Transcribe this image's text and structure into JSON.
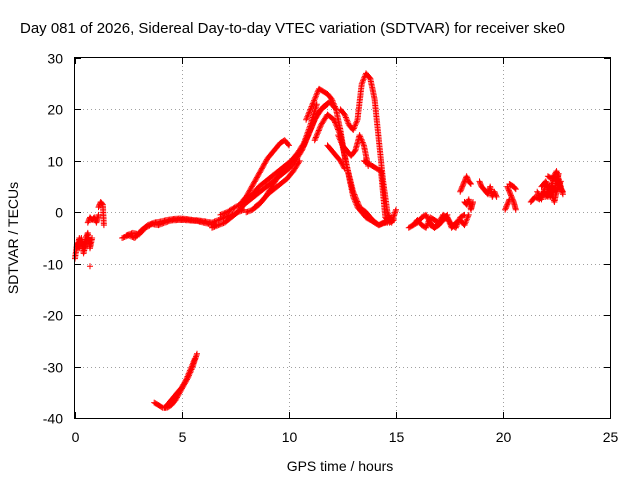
{
  "chart_data": {
    "type": "scatter",
    "title": "Day 081 of 2026, Sidereal Day-to-day VTEC variation (SDTVAR) for receiver ske0",
    "xlabel": "GPS time / hours",
    "ylabel": "SDTVAR / TECUs",
    "xlim": [
      0,
      25
    ],
    "ylim": [
      -40,
      30
    ],
    "x_ticks": [
      0,
      5,
      10,
      15,
      20,
      25
    ],
    "y_ticks": [
      -40,
      -30,
      -20,
      -10,
      0,
      10,
      20,
      30
    ],
    "x_tick_labels": [
      "0",
      "5",
      "10",
      "15",
      "20",
      "25"
    ],
    "y_tick_labels": [
      "-40",
      "-30",
      "-20",
      "-10",
      "0",
      "10",
      "20",
      "30"
    ],
    "grid": true,
    "marker": "plus",
    "color": "#ff0000",
    "series": [
      {
        "name": "SDTVAR",
        "segments": [
          {
            "x": [
              0.0,
              0.1,
              0.2,
              0.3,
              0.4,
              0.5,
              0.6,
              0.7
            ],
            "y": [
              -9,
              -6,
              -7,
              -5,
              -8,
              -6,
              -5,
              -6
            ]
          },
          {
            "x": [
              0.1,
              0.2,
              0.3,
              0.4,
              0.5,
              0.6,
              0.7,
              0.8
            ],
            "y": [
              -7,
              -5,
              -6,
              -7,
              -5,
              -4,
              -7,
              -5
            ]
          },
          {
            "x": [
              0.6,
              0.7,
              0.8,
              0.9,
              1.0,
              1.1
            ],
            "y": [
              -2,
              -1,
              -1.5,
              -1,
              -2,
              -0.5
            ]
          },
          {
            "x": [
              1.1,
              1.2,
              1.3,
              1.35
            ],
            "y": [
              1,
              2,
              1.5,
              -2.5
            ]
          },
          {
            "x": [
              0.7
            ],
            "y": [
              -10.5
            ]
          },
          {
            "x": [
              2.2,
              2.5,
              2.8,
              3.1,
              3.4,
              3.7,
              4.0,
              4.3,
              4.6,
              4.9,
              5.2,
              5.5,
              5.8,
              6.1,
              6.4,
              6.7,
              7.0,
              7.3,
              7.6,
              7.9
            ],
            "y": [
              -5,
              -4.5,
              -5,
              -3.5,
              -2.5,
              -2,
              -1.8,
              -1.5,
              -1.3,
              -1.2,
              -1.3,
              -1.5,
              -1.6,
              -1.8,
              -2,
              -1.5,
              -1,
              -0.5,
              0,
              0.5
            ]
          },
          {
            "x": [
              2.4,
              2.7,
              3.0,
              3.3,
              3.6,
              3.9,
              4.2,
              4.5,
              4.8,
              5.1,
              5.4,
              5.7,
              6.0,
              6.3,
              6.6
            ],
            "y": [
              -4.5,
              -4,
              -4.3,
              -3,
              -2.3,
              -2.5,
              -2,
              -1.6,
              -1.5,
              -1.5,
              -1.6,
              -1.7,
              -2,
              -2.3,
              -2.5
            ]
          },
          {
            "x": [
              6.4,
              6.7,
              7.0,
              7.3,
              7.6,
              7.9,
              8.2,
              8.5,
              8.8,
              9.1,
              9.4,
              9.7,
              10.0,
              10.3,
              10.6,
              10.9,
              11.2,
              11.5,
              11.8
            ],
            "y": [
              -3,
              -2.5,
              -2,
              -1,
              0,
              1.5,
              2.5,
              3.5,
              4.5,
              5.5,
              6.5,
              7.5,
              8.5,
              10,
              12,
              15,
              18,
              20,
              21
            ]
          },
          {
            "x": [
              6.8,
              7.1,
              7.4,
              7.7,
              8.0,
              8.3,
              8.6,
              8.9,
              9.2,
              9.5,
              9.8,
              10.1,
              10.4,
              10.7,
              11.0,
              11.3,
              11.6,
              11.9,
              12.2
            ],
            "y": [
              -0.5,
              0,
              0.8,
              1.5,
              2.5,
              3.5,
              5,
              6,
              7,
              8,
              9,
              10,
              11,
              13,
              16,
              19,
              20.5,
              21.5,
              20
            ]
          },
          {
            "x": [
              7.8,
              8.0,
              8.2,
              8.4,
              8.6,
              8.8,
              9.0,
              9.2,
              9.4,
              9.6,
              9.8,
              10.0
            ],
            "y": [
              2,
              3,
              4.5,
              6,
              7.5,
              9,
              10.5,
              11.5,
              12.5,
              13.5,
              14,
              13
            ]
          },
          {
            "x": [
              8.0,
              8.3,
              8.6,
              8.9,
              9.2,
              9.5,
              9.8,
              10.1,
              10.4,
              10.7,
              11.0,
              11.3
            ],
            "y": [
              0,
              0.5,
              1.5,
              3,
              5,
              7,
              8.5,
              10,
              11.5,
              13.5,
              17,
              21
            ]
          },
          {
            "x": [
              8.4,
              8.7,
              9.0,
              9.3,
              9.6,
              9.9,
              10.2,
              10.5
            ],
            "y": [
              1,
              2,
              3.5,
              4.5,
              5.5,
              6.5,
              8,
              10
            ]
          },
          {
            "x": [
              10.8,
              11.0,
              11.2,
              11.4,
              11.6,
              11.8,
              12.0,
              12.2,
              12.4,
              12.6,
              12.8,
              13.0,
              13.2,
              13.4,
              13.6,
              13.8,
              14.0,
              14.2,
              14.4,
              14.6
            ],
            "y": [
              18,
              20,
              22,
              24,
              23.5,
              23,
              22,
              20,
              16,
              11,
              7,
              3,
              1,
              0,
              -1,
              -1.5,
              -2,
              -2.5,
              -2,
              -2
            ]
          },
          {
            "x": [
              11.2,
              11.5,
              11.8,
              12.1,
              12.4,
              12.7,
              13.0,
              13.3,
              13.6,
              13.9,
              14.2,
              14.5,
              14.8
            ],
            "y": [
              14,
              17,
              19,
              18,
              15,
              9,
              4,
              1,
              0,
              -1.5,
              -2.5,
              -2,
              -1
            ]
          },
          {
            "x": [
              11.8,
              12.0,
              12.2,
              12.4,
              12.6
            ],
            "y": [
              13,
              12,
              11,
              10,
              8.5
            ]
          },
          {
            "x": [
              12.3,
              12.5,
              12.7,
              12.9,
              13.1,
              13.3,
              13.5,
              13.7
            ],
            "y": [
              15,
              13,
              12,
              11,
              12,
              15,
              13,
              9
            ]
          },
          {
            "x": [
              12.4,
              12.6,
              12.8,
              13.0,
              13.2,
              13.4,
              13.6,
              13.8,
              14.0,
              14.2,
              14.4,
              14.6,
              14.8,
              15.0
            ],
            "y": [
              20,
              19,
              17,
              16,
              18,
              25,
              27,
              26,
              22,
              14,
              6,
              0,
              -2,
              0.5
            ]
          },
          {
            "x": [
              13.5,
              13.7,
              13.9,
              14.1,
              14.3,
              14.5,
              14.7,
              14.9
            ],
            "y": [
              10,
              9.5,
              9,
              8.5,
              8,
              -1,
              -2,
              -1.5
            ]
          },
          {
            "x": [
              3.7,
              3.9,
              4.1,
              4.3,
              4.5,
              4.7,
              4.9,
              5.1,
              5.3,
              5.5,
              5.7
            ],
            "y": [
              -37,
              -37.5,
              -38,
              -38,
              -37.5,
              -36.5,
              -35,
              -33.5,
              -32,
              -30,
              -27.5
            ]
          },
          {
            "x": [
              4.2,
              4.4,
              4.6,
              4.8,
              5.0,
              5.2,
              5.4,
              5.6
            ],
            "y": [
              -38,
              -37,
              -36,
              -35,
              -34,
              -32.5,
              -30.5,
              -28.5
            ]
          },
          {
            "x": [
              15.6,
              15.8,
              16.0,
              16.2,
              16.4,
              16.6,
              16.8,
              17.0,
              17.2,
              17.4,
              17.6,
              17.8,
              18.0,
              18.2,
              18.4
            ],
            "y": [
              -3,
              -2.5,
              -2,
              -1,
              -0.5,
              -2,
              -3,
              -2.5,
              -1.5,
              -1,
              -3,
              -2,
              -1.5,
              -2.5,
              -0.5
            ]
          },
          {
            "x": [
              15.8,
              16.0,
              16.2,
              16.4,
              16.6,
              16.8,
              17.0,
              17.2,
              17.4,
              17.6,
              17.8,
              18.0,
              18.2
            ],
            "y": [
              -2.5,
              -1.5,
              -2.5,
              -3,
              -1,
              -1.5,
              -2,
              -0.5,
              -1,
              -2.5,
              -3,
              -1,
              -0.5
            ]
          },
          {
            "x": [
              16.6,
              16.8,
              17.0,
              17.2,
              17.4
            ],
            "y": [
              -2.5,
              -3,
              -2,
              -1.5,
              -0.5
            ]
          },
          {
            "x": [
              18.0,
              18.1,
              18.2,
              18.3,
              18.4,
              18.5
            ],
            "y": [
              4,
              5,
              6,
              7,
              6,
              5.5
            ]
          },
          {
            "x": [
              18.2,
              18.3,
              18.4,
              18.5,
              18.6
            ],
            "y": [
              2,
              1.5,
              2.5,
              0.5,
              2
            ]
          },
          {
            "x": [
              18.9,
              19.0,
              19.1,
              19.2,
              19.3,
              19.4,
              19.5,
              19.6,
              19.7
            ],
            "y": [
              6,
              5,
              4.5,
              4,
              3.5,
              5,
              3,
              4,
              3
            ]
          },
          {
            "x": [
              20.2,
              20.3,
              20.4,
              20.5,
              20.6
            ],
            "y": [
              5,
              4,
              3,
              2,
              0.5
            ]
          },
          {
            "x": [
              20.1,
              20.2,
              20.3
            ],
            "y": [
              0.5,
              1.5,
              2.5
            ]
          },
          {
            "x": [
              20.3,
              20.5,
              20.6
            ],
            "y": [
              5.5,
              5,
              4.5
            ]
          },
          {
            "x": [
              21.3,
              21.5,
              21.7,
              21.9,
              22.1,
              22.3,
              22.5,
              22.7
            ],
            "y": [
              2,
              3,
              2.5,
              4,
              3,
              5,
              4,
              6
            ]
          },
          {
            "x": [
              21.8,
              22.0,
              22.2,
              22.4,
              22.6,
              22.8
            ],
            "y": [
              5,
              6,
              4.5,
              7,
              5.5,
              4
            ]
          },
          {
            "x": [
              22.0,
              22.2,
              22.4,
              22.6,
              22.8
            ],
            "y": [
              3,
              4.5,
              2,
              6,
              3.5
            ]
          },
          {
            "x": [
              22.1,
              22.3,
              22.5,
              22.7
            ],
            "y": [
              7,
              6.5,
              8,
              5
            ]
          },
          {
            "x": [
              21.6,
              21.8,
              22.0,
              22.2,
              22.4,
              22.6
            ],
            "y": [
              4,
              2.5,
              5.5,
              3,
              4.5,
              7.5
            ]
          }
        ]
      }
    ]
  }
}
